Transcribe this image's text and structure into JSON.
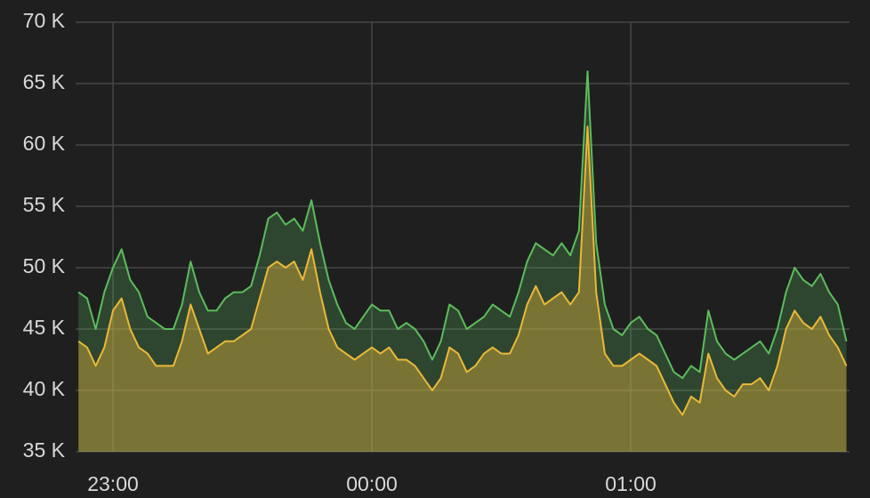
{
  "chart_data": {
    "type": "area",
    "categories": [
      null,
      null,
      null,
      null,
      "23:00",
      null,
      null,
      null,
      null,
      null,
      null,
      null,
      null,
      null,
      null,
      null,
      null,
      null,
      null,
      null,
      null,
      null,
      null,
      null,
      null,
      null,
      null,
      null,
      null,
      null,
      null,
      null,
      null,
      null,
      "00:00",
      null,
      null,
      null,
      null,
      null,
      null,
      null,
      null,
      null,
      null,
      null,
      null,
      null,
      null,
      null,
      null,
      null,
      null,
      null,
      null,
      null,
      null,
      null,
      null,
      null,
      null,
      null,
      null,
      null,
      "01:00",
      null,
      null,
      null,
      null,
      null,
      null,
      null,
      null,
      null,
      null,
      null,
      null,
      null,
      null,
      null,
      null,
      null,
      null,
      null,
      null,
      null,
      null,
      null,
      null,
      null
    ],
    "series": [
      {
        "color": "#5bbd5b",
        "values": [
          48,
          47.5,
          45,
          48,
          50,
          51.5,
          49,
          48,
          46,
          45.5,
          45,
          45,
          47,
          50.5,
          48,
          46.5,
          46.5,
          47.5,
          48,
          48,
          48.5,
          51,
          54,
          54.5,
          53.5,
          54,
          53,
          55.5,
          52,
          49,
          47,
          45.5,
          45,
          46,
          47,
          46.5,
          46.5,
          45,
          45.5,
          45,
          44,
          42.5,
          44,
          47,
          46.5,
          45,
          45.5,
          46,
          47,
          46.5,
          46,
          48,
          50.5,
          52,
          51.5,
          51,
          52,
          51,
          53,
          66,
          52,
          47,
          45,
          44.5,
          45.5,
          46,
          45,
          44.5,
          43,
          41.5,
          41,
          42,
          41.5,
          46.5,
          44,
          43,
          42.5,
          43,
          43.5,
          44,
          43,
          45,
          48,
          50,
          49,
          48.5,
          49.5,
          48,
          47,
          44
        ]
      },
      {
        "color": "#eab839",
        "values": [
          44,
          43.5,
          42,
          43.5,
          46.5,
          47.5,
          45,
          43.5,
          43,
          42,
          42,
          42,
          44,
          47,
          45,
          43,
          43.5,
          44,
          44,
          44.5,
          45,
          47.5,
          50,
          50.5,
          50,
          50.5,
          49,
          51.5,
          48,
          45,
          43.5,
          43,
          42.5,
          43,
          43.5,
          43,
          43.5,
          42.5,
          42.5,
          42,
          41,
          40,
          41,
          43.5,
          43,
          41.5,
          42,
          43,
          43.5,
          43,
          43,
          44.5,
          47,
          48.5,
          47,
          47.5,
          48,
          47,
          48,
          61.5,
          48,
          43,
          42,
          42,
          42.5,
          43,
          42.5,
          42,
          40.5,
          39,
          38,
          39.5,
          39,
          43,
          41,
          40,
          39.5,
          40.5,
          40.5,
          41,
          40,
          42,
          45,
          46.5,
          45.5,
          45,
          46,
          44.5,
          43.5,
          42
        ]
      }
    ],
    "ylim": [
      35,
      70
    ],
    "yticks": [
      {
        "value": 35,
        "label": "35 K"
      },
      {
        "value": 40,
        "label": "40 K"
      },
      {
        "value": 45,
        "label": "45 K"
      },
      {
        "value": 50,
        "label": "50 K"
      },
      {
        "value": 55,
        "label": "55 K"
      },
      {
        "value": 60,
        "label": "60 K"
      },
      {
        "value": 65,
        "label": "65 K"
      },
      {
        "value": 70,
        "label": "70 K"
      }
    ],
    "grid": true
  }
}
